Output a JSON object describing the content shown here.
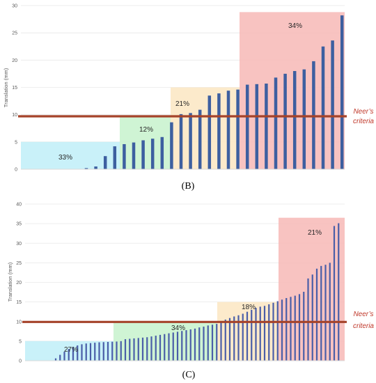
{
  "chart_data": [
    {
      "type": "bar",
      "panel_label": "(B)",
      "ylabel": "Translation (mm)",
      "ylim": [
        0,
        30
      ],
      "yticks": [
        0,
        5,
        10,
        15,
        20,
        25,
        30
      ],
      "threshold": {
        "value": 9.7,
        "label_line1": "Neer’s",
        "label_line2": "criteria",
        "color": "#a5432a"
      },
      "bar_color": "#3d5fa0",
      "values": [
        0.2,
        0.5,
        2.4,
        4.2,
        4.6,
        4.9,
        5.3,
        5.6,
        5.9,
        8.6,
        10.1,
        10.3,
        10.9,
        13.5,
        13.9,
        14.4,
        14.6,
        15.5,
        15.6,
        15.7,
        16.8,
        17.5,
        18.0,
        18.3,
        19.8,
        22.5,
        23.6,
        28.2
      ],
      "regions": [
        {
          "label": "33%",
          "y_from": 0,
          "y_to": 5,
          "color": "#bfeef8"
        },
        {
          "label": "12%",
          "y_from": 0,
          "y_to": 9.7,
          "color": "#c7f2cc"
        },
        {
          "label": "21%",
          "y_from": 0,
          "y_to": 15,
          "color": "#fbe6c2"
        },
        {
          "label": "34%",
          "y_from": 0,
          "y_to": 28.8,
          "color": "#f7b9b6"
        }
      ]
    },
    {
      "type": "bar",
      "panel_label": "(C)",
      "ylabel": "Translation (mm)",
      "ylim": [
        0,
        40
      ],
      "yticks": [
        0,
        5,
        10,
        15,
        20,
        25,
        30,
        35,
        40
      ],
      "threshold": {
        "value": 9.9,
        "label_line1": "Neer’s",
        "label_line2": "criteria",
        "color": "#a5432a"
      },
      "bar_color": "#4a5ea8",
      "values": [
        0.6,
        1.5,
        2.3,
        3.0,
        3.5,
        3.9,
        4.2,
        4.4,
        4.5,
        4.6,
        4.7,
        4.75,
        4.8,
        4.85,
        4.9,
        5.0,
        5.5,
        5.6,
        5.7,
        5.8,
        5.9,
        6.0,
        6.2,
        6.4,
        6.6,
        6.8,
        7.0,
        7.2,
        7.4,
        7.6,
        7.8,
        8.0,
        8.2,
        8.5,
        8.7,
        9.0,
        9.2,
        9.4,
        9.7,
        10.5,
        10.9,
        11.3,
        11.6,
        12.0,
        12.5,
        13.0,
        13.5,
        13.8,
        14.0,
        14.4,
        14.8,
        15.2,
        15.6,
        16.0,
        16.3,
        16.6,
        17.0,
        17.6,
        21.0,
        22.0,
        23.5,
        24.2,
        24.5,
        25.0,
        34.4,
        35.1
      ],
      "regions": [
        {
          "label": "27%",
          "y_from": 0,
          "y_to": 5,
          "color": "#bfeef8"
        },
        {
          "label": "34%",
          "y_from": 0,
          "y_to": 9.9,
          "color": "#c7f2cc"
        },
        {
          "label": "18%",
          "y_from": 0,
          "y_to": 15,
          "color": "#fbe6c2"
        },
        {
          "label": "21%",
          "y_from": 0,
          "y_to": 36.5,
          "color": "#f7b9b6"
        }
      ]
    }
  ]
}
